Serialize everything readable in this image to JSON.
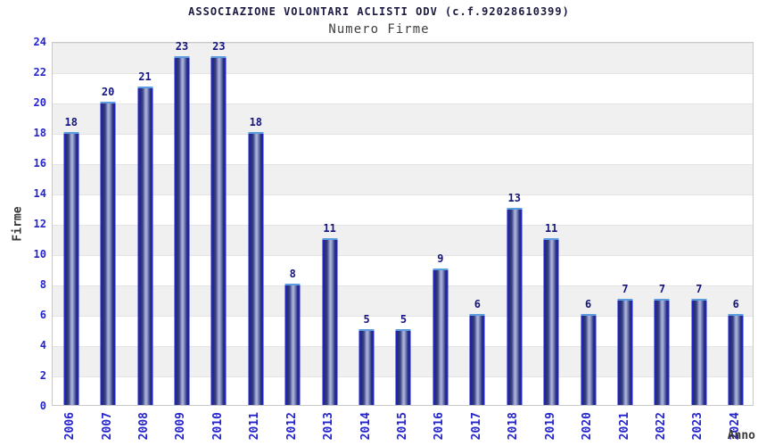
{
  "header": {
    "title": "ASSOCIAZIONE VOLONTARI ACLISTI ODV (c.f.92028610399)",
    "subtitle": "Numero Firme"
  },
  "chart_data": {
    "type": "bar",
    "title": "ASSOCIAZIONE VOLONTARI ACLISTI ODV (c.f.92028610399)",
    "subtitle": "Numero Firme",
    "xlabel": "Anno",
    "ylabel": "Firme",
    "categories": [
      "2006",
      "2007",
      "2008",
      "2009",
      "2010",
      "2011",
      "2012",
      "2013",
      "2014",
      "2015",
      "2016",
      "2017",
      "2018",
      "2019",
      "2020",
      "2021",
      "2022",
      "2023",
      "2024"
    ],
    "values": [
      18,
      20,
      21,
      23,
      23,
      18,
      8,
      11,
      5,
      5,
      9,
      6,
      13,
      11,
      6,
      7,
      7,
      7,
      6
    ],
    "ylim": [
      0,
      24
    ],
    "yticks": [
      0,
      2,
      4,
      6,
      8,
      10,
      12,
      14,
      16,
      18,
      20,
      22,
      24
    ],
    "grid": "horizontal-alternating-bands",
    "legend": "none",
    "colors": {
      "bar_edge": "#2026c0",
      "bar_dark": "#272c6c",
      "bar_light": "#aeb6da",
      "bar_cap": "#5c9ce0",
      "tick_label": "#2424cc",
      "value_label": "#15157d",
      "band_gray": "#f0f0f0",
      "band_white": "#ffffff",
      "plot_border": "#c9c9c9",
      "title_color": "#1a1a40",
      "subtitle_color": "#404040",
      "axis_title_color": "#383838"
    }
  }
}
